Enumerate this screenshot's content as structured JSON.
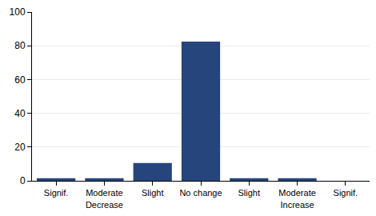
{
  "chart_data": {
    "type": "bar",
    "categories": [
      "Signif.",
      "Moderate\nDecrease",
      "Slight",
      "No change",
      "Slight",
      "Moderate\nIncrease",
      "Signif."
    ],
    "values": [
      1.5,
      1.5,
      10.5,
      82.5,
      1.5,
      1.5,
      0
    ],
    "color": "#26457c",
    "ylim": [
      0,
      100
    ],
    "yticks": [
      0,
      20,
      40,
      60,
      80,
      100
    ],
    "grid": true
  }
}
